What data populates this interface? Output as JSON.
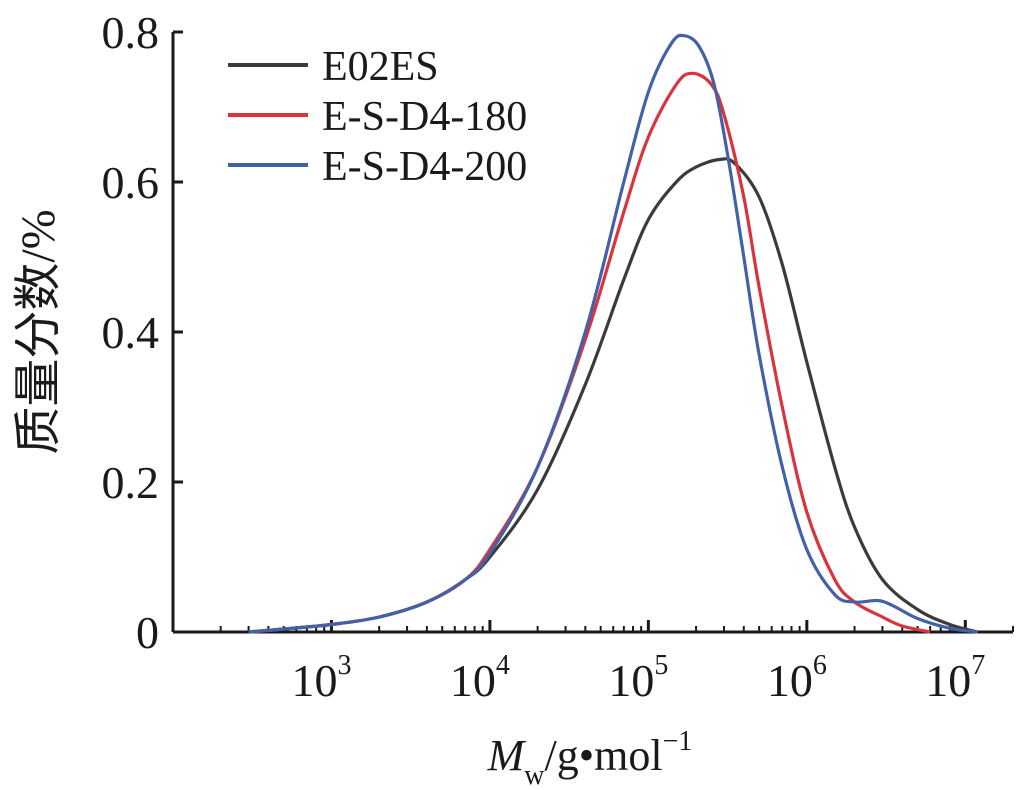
{
  "chart_data": {
    "type": "line",
    "xscale": "log",
    "xlim": [
      100,
      20000000
    ],
    "ylim": [
      0,
      0.8
    ],
    "grid": false,
    "legend_position": "top-left",
    "xlabel": {
      "main": "M",
      "sub": "w",
      "rest": "/g•mol",
      "sup": "−1"
    },
    "ylabel": "质量分数/%",
    "x_ticks": [
      {
        "base": "10",
        "exp": "3",
        "value": 1000
      },
      {
        "base": "10",
        "exp": "4",
        "value": 10000
      },
      {
        "base": "10",
        "exp": "5",
        "value": 100000
      },
      {
        "base": "10",
        "exp": "6",
        "value": 1000000
      },
      {
        "base": "10",
        "exp": "7",
        "value": 10000000
      }
    ],
    "y_ticks": [
      {
        "label": "0",
        "value": 0
      },
      {
        "label": "0.2",
        "value": 0.2
      },
      {
        "label": "0.4",
        "value": 0.4
      },
      {
        "label": "0.6",
        "value": 0.6
      },
      {
        "label": "0.8",
        "value": 0.8
      }
    ],
    "series": [
      {
        "name": "E02ES",
        "color": "#3d3a3b",
        "x": [
          300,
          500,
          1000,
          2000,
          4000,
          7000,
          10000,
          20000,
          40000,
          70000,
          100000,
          150000,
          200000,
          280000,
          350000,
          500000,
          700000,
          1000000,
          1500000,
          2000000,
          3000000,
          5000000,
          8000000,
          12000000
        ],
        "y": [
          0.0,
          0.004,
          0.01,
          0.02,
          0.04,
          0.07,
          0.1,
          0.19,
          0.33,
          0.47,
          0.55,
          0.6,
          0.62,
          0.63,
          0.625,
          0.58,
          0.49,
          0.36,
          0.22,
          0.14,
          0.07,
          0.03,
          0.01,
          0.0
        ]
      },
      {
        "name": "E-S-D4-180",
        "color": "#d9343e",
        "x": [
          300,
          500,
          1000,
          2000,
          4000,
          7000,
          10000,
          20000,
          40000,
          70000,
          100000,
          150000,
          190000,
          250000,
          300000,
          400000,
          500000,
          700000,
          1000000,
          1500000,
          2000000,
          3000000,
          4000000,
          6000000
        ],
        "y": [
          0.0,
          0.004,
          0.01,
          0.02,
          0.04,
          0.07,
          0.11,
          0.22,
          0.39,
          0.56,
          0.66,
          0.73,
          0.745,
          0.73,
          0.69,
          0.58,
          0.46,
          0.3,
          0.16,
          0.07,
          0.04,
          0.02,
          0.008,
          0.0
        ]
      },
      {
        "name": "E-S-D4-200",
        "color": "#4361a8",
        "x": [
          300,
          500,
          1000,
          2000,
          4000,
          7000,
          10000,
          20000,
          40000,
          70000,
          100000,
          140000,
          170000,
          210000,
          260000,
          320000,
          400000,
          500000,
          700000,
          1000000,
          1500000,
          2000000,
          2800000,
          3500000,
          5000000,
          8000000,
          12000000
        ],
        "y": [
          0.0,
          0.004,
          0.01,
          0.02,
          0.04,
          0.07,
          0.105,
          0.22,
          0.4,
          0.6,
          0.72,
          0.785,
          0.795,
          0.78,
          0.73,
          0.63,
          0.5,
          0.37,
          0.22,
          0.11,
          0.05,
          0.04,
          0.042,
          0.035,
          0.018,
          0.005,
          0.0
        ]
      }
    ]
  }
}
